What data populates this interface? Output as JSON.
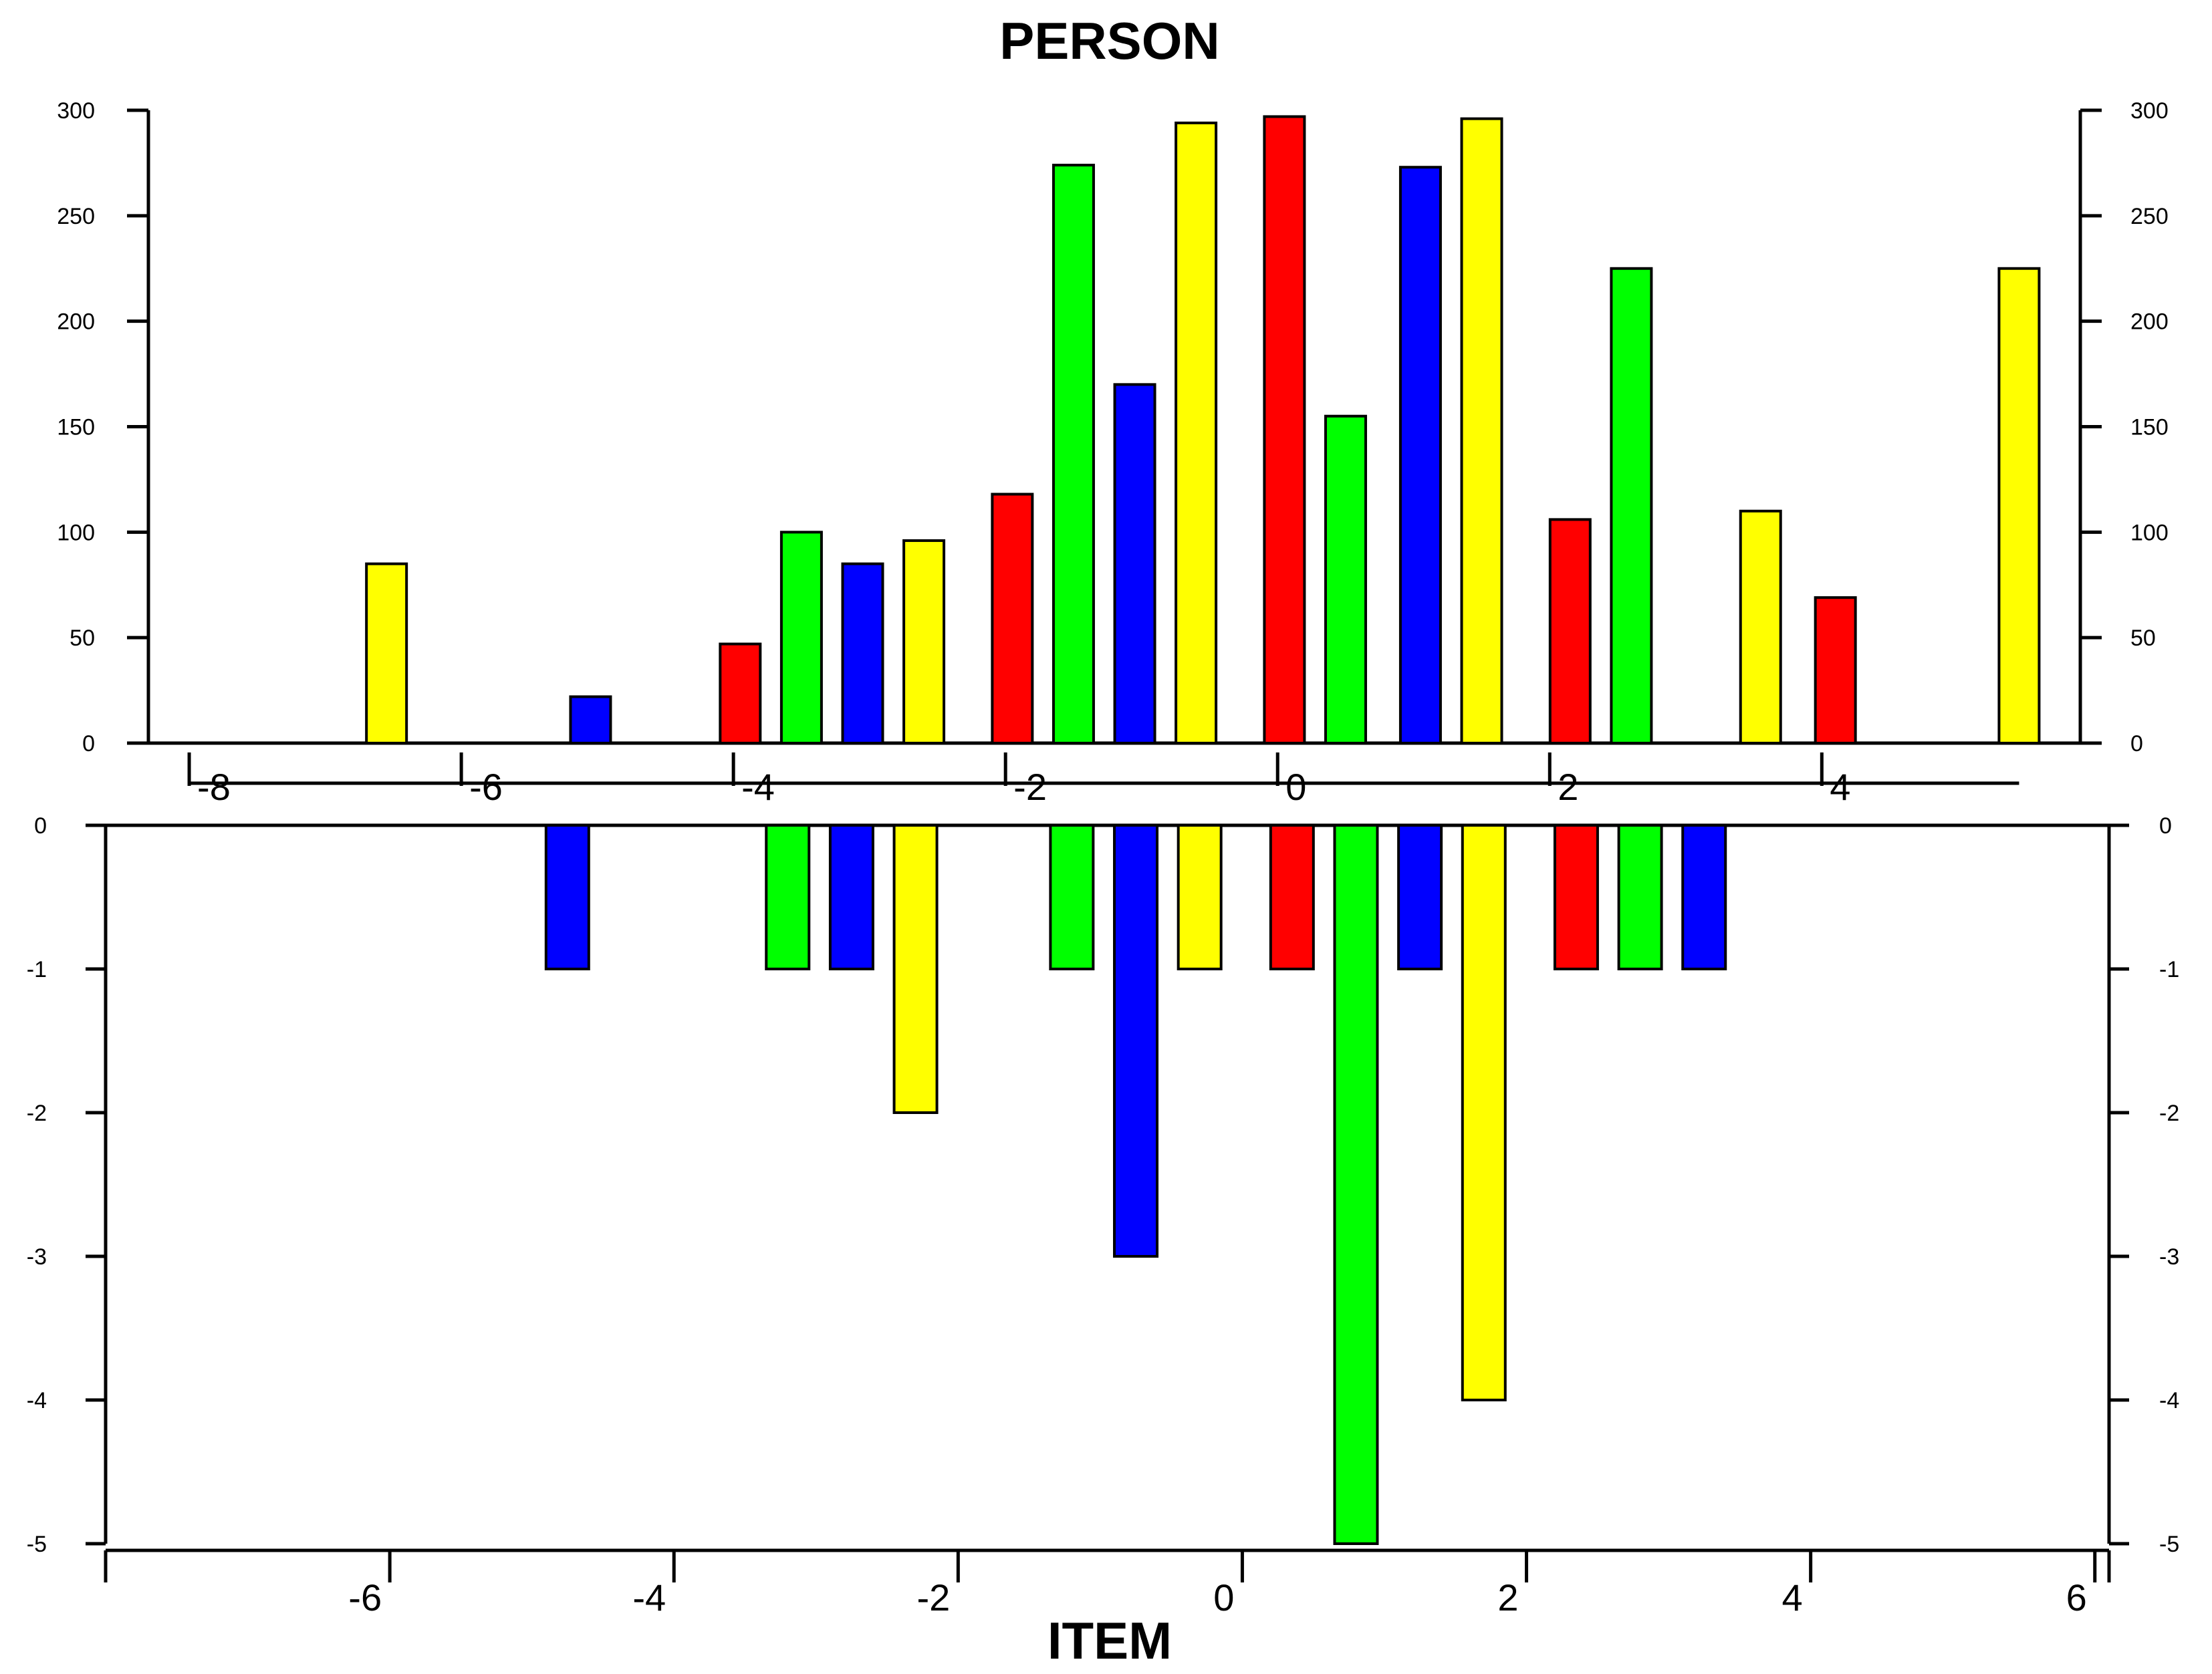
{
  "chart_data": [
    {
      "type": "bar",
      "title": "PERSON",
      "xlabel": "",
      "ylabel": "",
      "xlim": [
        -8.3,
        5.9
      ],
      "ylim": [
        0,
        300
      ],
      "xticks": [
        "-8",
        "-6",
        "-4",
        "-2",
        "0",
        "2",
        "4"
      ],
      "yticks": [
        "0",
        "50",
        "100",
        "150",
        "200",
        "250",
        "300"
      ],
      "bars": [
        {
          "x": -6.55,
          "value": 85,
          "color": "#ffff00"
        },
        {
          "x": -5.05,
          "value": 22,
          "color": "#0000ff"
        },
        {
          "x": -3.95,
          "value": 47,
          "color": "#ff0000"
        },
        {
          "x": -3.5,
          "value": 100,
          "color": "#00ff00"
        },
        {
          "x": -3.05,
          "value": 85,
          "color": "#0000ff"
        },
        {
          "x": -2.6,
          "value": 96,
          "color": "#ffff00"
        },
        {
          "x": -1.95,
          "value": 118,
          "color": "#ff0000"
        },
        {
          "x": -1.5,
          "value": 274,
          "color": "#00ff00"
        },
        {
          "x": -1.05,
          "value": 170,
          "color": "#0000ff"
        },
        {
          "x": -0.6,
          "value": 294,
          "color": "#ffff00"
        },
        {
          "x": 0.05,
          "value": 297,
          "color": "#ff0000"
        },
        {
          "x": 0.5,
          "value": 155,
          "color": "#00ff00"
        },
        {
          "x": 1.05,
          "value": 273,
          "color": "#0000ff"
        },
        {
          "x": 1.5,
          "value": 296,
          "color": "#ffff00"
        },
        {
          "x": 2.15,
          "value": 106,
          "color": "#ff0000"
        },
        {
          "x": 2.6,
          "value": 225,
          "color": "#00ff00"
        },
        {
          "x": 3.55,
          "value": 110,
          "color": "#ffff00"
        },
        {
          "x": 4.1,
          "value": 69,
          "color": "#ff0000"
        },
        {
          "x": 5.45,
          "value": 225,
          "color": "#ffff00"
        }
      ]
    },
    {
      "type": "bar",
      "title": "",
      "xlabel": "ITEM",
      "ylabel": "",
      "xlim": [
        -8.0,
        6.1
      ],
      "ylim": [
        -5,
        0
      ],
      "xticks": [
        "-6",
        "-4",
        "-2",
        "0",
        "2",
        "4",
        "6"
      ],
      "yticks": [
        "0",
        "-1",
        "-2",
        "-3",
        "-4",
        "-5"
      ],
      "bars": [
        {
          "x": -4.75,
          "value": -1,
          "color": "#0000ff"
        },
        {
          "x": -3.2,
          "value": -1,
          "color": "#00ff00"
        },
        {
          "x": -2.75,
          "value": -1,
          "color": "#0000ff"
        },
        {
          "x": -2.3,
          "value": -2,
          "color": "#ffff00"
        },
        {
          "x": -1.2,
          "value": -1,
          "color": "#00ff00"
        },
        {
          "x": -0.75,
          "value": -3,
          "color": "#0000ff"
        },
        {
          "x": -0.3,
          "value": -1,
          "color": "#ffff00"
        },
        {
          "x": 0.35,
          "value": -1,
          "color": "#ff0000"
        },
        {
          "x": 0.8,
          "value": -5,
          "color": "#00ff00"
        },
        {
          "x": 1.25,
          "value": -1,
          "color": "#0000ff"
        },
        {
          "x": 1.7,
          "value": -4,
          "color": "#ffff00"
        },
        {
          "x": 2.35,
          "value": -1,
          "color": "#ff0000"
        },
        {
          "x": 2.8,
          "value": -1,
          "color": "#00ff00"
        },
        {
          "x": 3.25,
          "value": -1,
          "color": "#0000ff"
        }
      ]
    }
  ]
}
